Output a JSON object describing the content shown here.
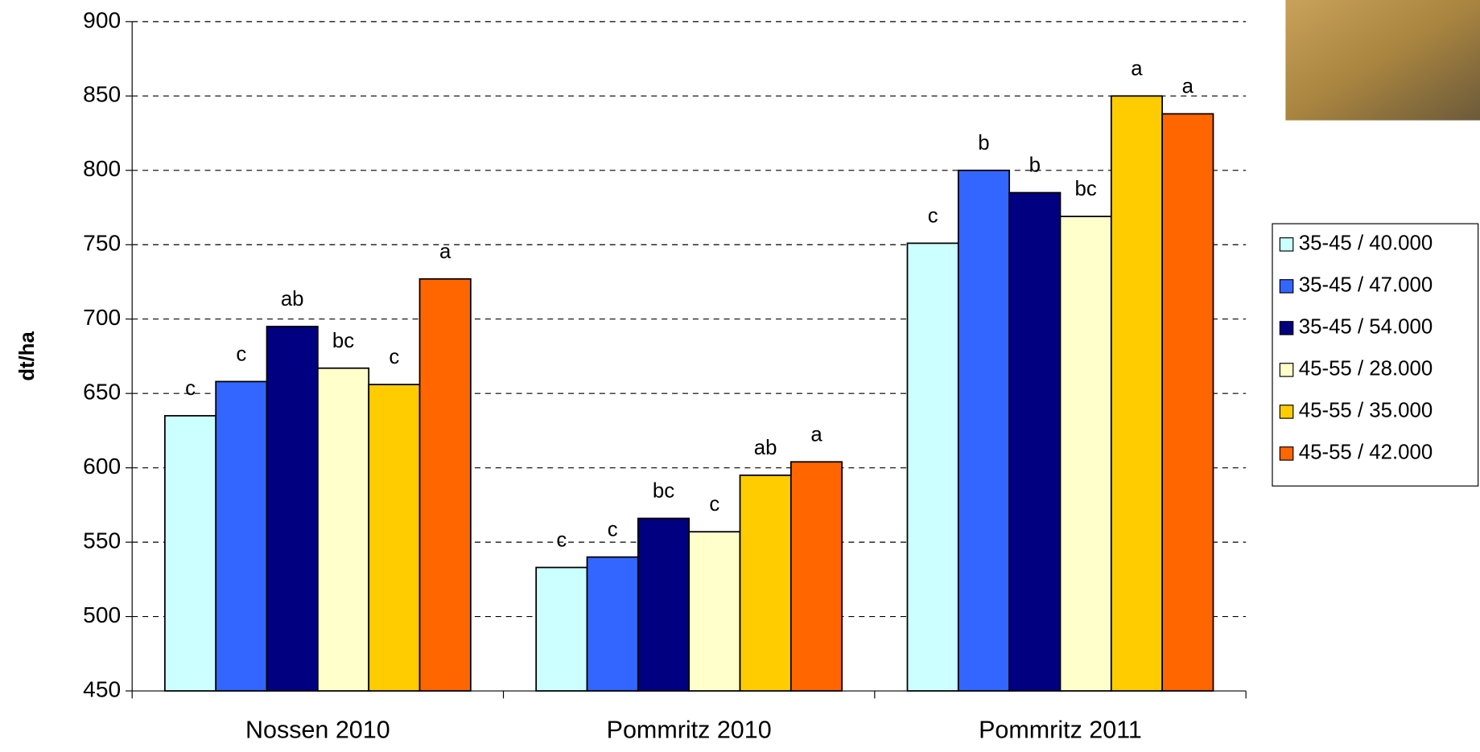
{
  "chart_data": {
    "type": "bar",
    "y_label": "dt/ha",
    "categories": [
      "Nossen 2010",
      "Pommritz 2010",
      "Pommritz 2011"
    ],
    "series": [
      {
        "name": "35-45 / 40.000",
        "color": "#CCFFFF",
        "values": [
          635,
          533,
          751
        ],
        "letters": [
          "c",
          "c",
          "c"
        ]
      },
      {
        "name": "35-45 / 47.000",
        "color": "#3366FF",
        "values": [
          658,
          540,
          800
        ],
        "letters": [
          "c",
          "c",
          "b"
        ]
      },
      {
        "name": "35-45 / 54.000",
        "color": "#000080",
        "values": [
          695,
          566,
          785
        ],
        "letters": [
          "ab",
          "bc",
          "b"
        ]
      },
      {
        "name": "45-55 / 28.000",
        "color": "#FFFFCC",
        "values": [
          667,
          557,
          769
        ],
        "letters": [
          "bc",
          "c",
          "bc"
        ]
      },
      {
        "name": "45-55 / 35.000",
        "color": "#FFCC00",
        "values": [
          656,
          595,
          850
        ],
        "letters": [
          "c",
          "ab",
          "a"
        ]
      },
      {
        "name": "45-55 / 42.000",
        "color": "#FF6600",
        "values": [
          727,
          604,
          838
        ],
        "letters": [
          "a",
          "a",
          "a"
        ]
      }
    ],
    "ylim": [
      450,
      900
    ],
    "yticks": [
      450,
      500,
      550,
      600,
      650,
      700,
      750,
      800,
      850,
      900
    ],
    "grid": true,
    "legend": "right"
  }
}
